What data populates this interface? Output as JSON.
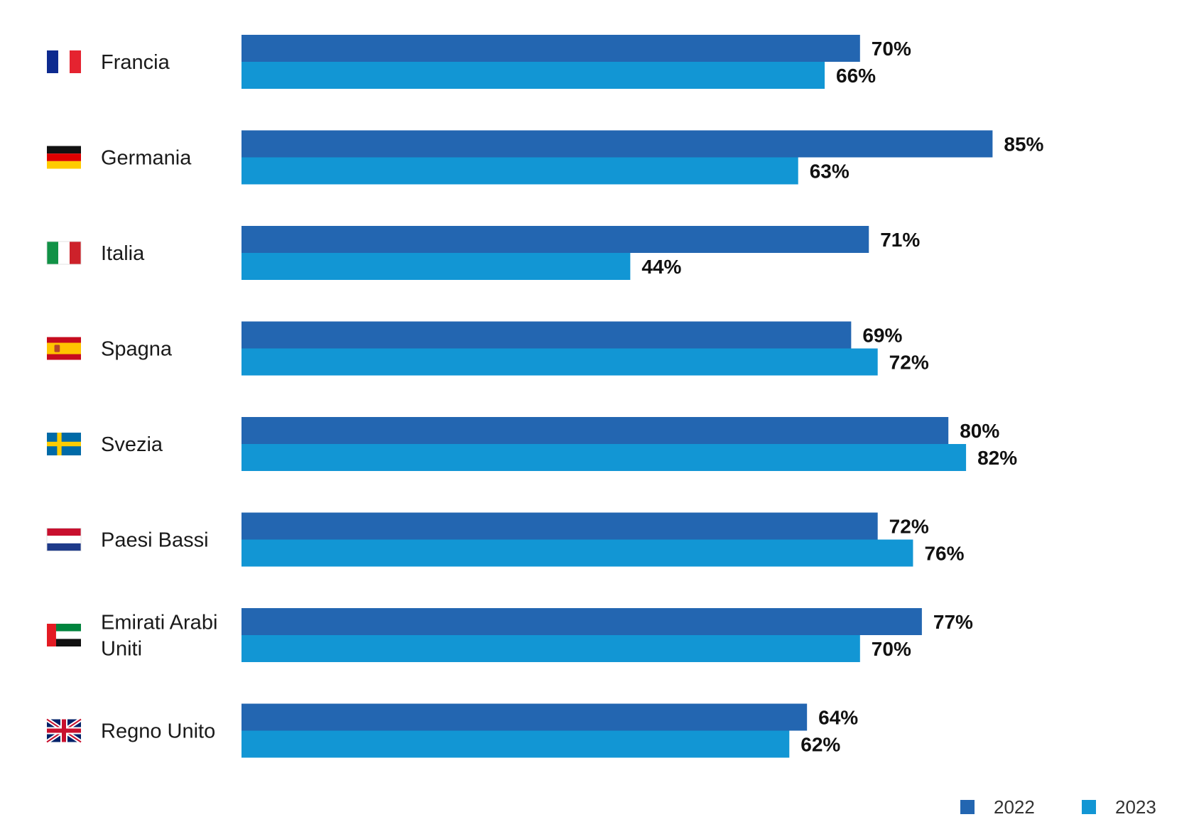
{
  "chart_data": {
    "type": "bar",
    "orientation": "horizontal",
    "categories": [
      {
        "label_lines": [
          "Francia"
        ],
        "flag": "france-flag-icon"
      },
      {
        "label_lines": [
          "Germania"
        ],
        "flag": "germany-flag-icon"
      },
      {
        "label_lines": [
          "Italia"
        ],
        "flag": "italy-flag-icon"
      },
      {
        "label_lines": [
          "Spagna"
        ],
        "flag": "spain-flag-icon"
      },
      {
        "label_lines": [
          "Svezia"
        ],
        "flag": "sweden-flag-icon"
      },
      {
        "label_lines": [
          "Paesi Bassi"
        ],
        "flag": "netherlands-flag-icon"
      },
      {
        "label_lines": [
          "Emirati Arabi",
          "Uniti"
        ],
        "flag": "uae-flag-icon"
      },
      {
        "label_lines": [
          "Regno Unito"
        ],
        "flag": "uk-flag-icon"
      }
    ],
    "series": [
      {
        "name": "2022",
        "color": "#2366b1",
        "values": [
          70,
          85,
          71,
          69,
          80,
          72,
          77,
          64
        ]
      },
      {
        "name": "2023",
        "color": "#1296d4",
        "values": [
          66,
          63,
          44,
          72,
          82,
          76,
          70,
          62
        ]
      }
    ],
    "value_suffix": "%",
    "xlim": [
      0,
      100
    ],
    "grid": false,
    "axes_visible": false,
    "legend_position": "bottom-right"
  }
}
